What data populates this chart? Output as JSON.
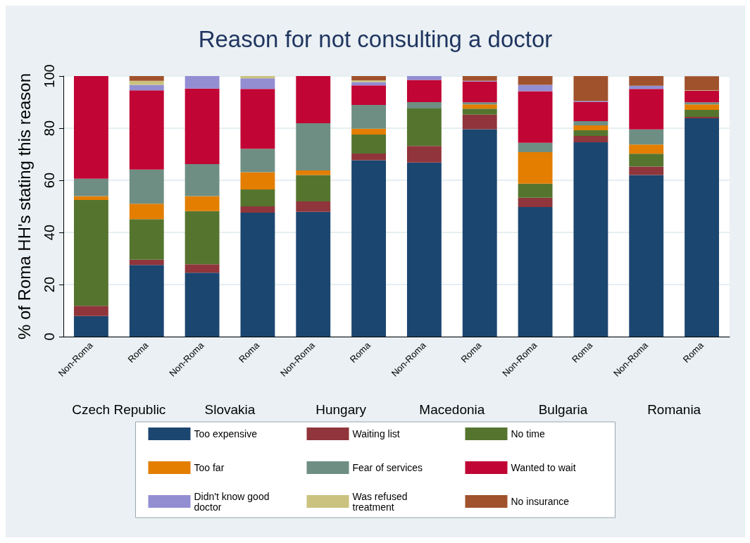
{
  "chart_data": {
    "type": "bar",
    "stacked": true,
    "title": "Reason for not consulting a doctor",
    "ylabel": "% of Roma HH's stating this reason",
    "categories": [
      "Non-Roma",
      "Roma",
      "Non-Roma",
      "Roma",
      "Non-Roma",
      "Roma",
      "Non-Roma",
      "Roma",
      "Non-Roma",
      "Roma",
      "Non-Roma",
      "Roma"
    ],
    "annotations": [
      "Czech Republic",
      "Slovakia",
      "Hungary",
      "Macedonia",
      "Bulgaria",
      "Romania"
    ],
    "ylim": [
      0,
      100
    ],
    "yticks": [
      0,
      20,
      40,
      60,
      80,
      100
    ],
    "grid": "y",
    "legend": "bottom",
    "series": [
      {
        "name": "Too expensive",
        "color": "#1b4670",
        "values": [
          7.9,
          27.5,
          24.5,
          47.6,
          47.9,
          67.7,
          66.8,
          79.6,
          49.7,
          74.6,
          62.0,
          83.8
        ]
      },
      {
        "name": "Waiting list",
        "color": "#90353b",
        "values": [
          3.9,
          2.0,
          3.3,
          2.4,
          4.0,
          2.6,
          6.4,
          5.6,
          3.6,
          2.4,
          3.3,
          0.5
        ]
      },
      {
        "name": "No time",
        "color": "#55752f",
        "values": [
          40.6,
          15.6,
          20.4,
          6.5,
          10.1,
          7.3,
          14.4,
          2.3,
          5.4,
          2.2,
          4.9,
          2.7
        ]
      },
      {
        "name": "Too far",
        "color": "#e37e00",
        "values": [
          1.5,
          5.9,
          5.7,
          6.6,
          1.8,
          2.2,
          null,
          1.6,
          12.1,
          1.9,
          3.5,
          2.1
        ]
      },
      {
        "name": "Fear of services",
        "color": "#6e8e84",
        "values": [
          6.7,
          13.1,
          12.3,
          9.0,
          18.1,
          9.1,
          2.4,
          0.8,
          3.6,
          1.6,
          5.8,
          0.8
        ]
      },
      {
        "name": "Wanted to wait",
        "color": "#c10534",
        "values": [
          39.4,
          30.4,
          29.0,
          23.0,
          18.1,
          7.5,
          8.5,
          8.0,
          19.8,
          7.3,
          15.6,
          4.4
        ]
      },
      {
        "name": "Didn't know good doctor",
        "color": "#938dd2",
        "values": [
          null,
          2.1,
          4.8,
          4.0,
          null,
          1.3,
          1.5,
          0.3,
          2.4,
          0.4,
          1.2,
          null
        ]
      },
      {
        "name": "Was refused treatment",
        "color": "#cac27e",
        "values": [
          null,
          1.6,
          null,
          0.9,
          null,
          0.7,
          null,
          null,
          null,
          null,
          null,
          0.2
        ]
      },
      {
        "name": "No insurance",
        "color": "#a0522d",
        "values": [
          null,
          1.8,
          null,
          null,
          null,
          1.6,
          null,
          1.8,
          3.4,
          9.6,
          3.7,
          5.4
        ]
      }
    ]
  }
}
